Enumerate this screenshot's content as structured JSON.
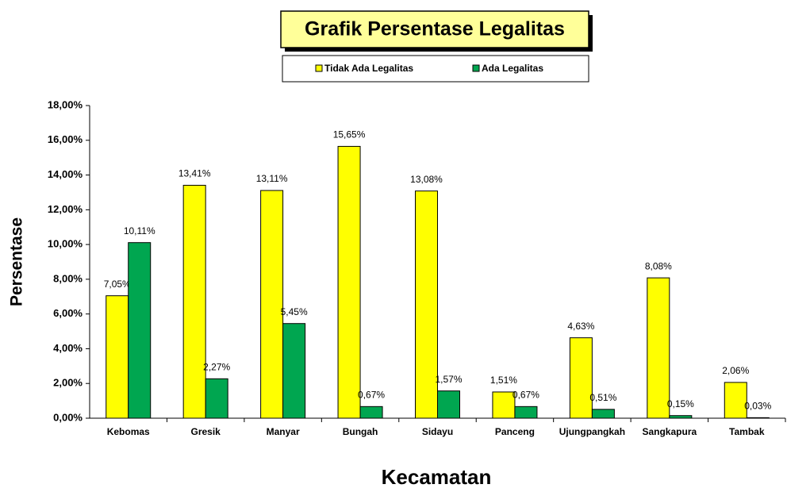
{
  "chart_data": {
    "type": "bar",
    "title": "Grafik Persentase Legalitas",
    "x_label": "Kecamatan",
    "y_label": "Persentase",
    "categories": [
      "Kebomas",
      "Gresik",
      "Manyar",
      "Bungah",
      "Sidayu",
      "Panceng",
      "Ujungpangkah",
      "Sangkapura",
      "Tambak"
    ],
    "series": [
      {
        "name": "Tidak Ada Legalitas",
        "color": "#ffff00",
        "values": [
          7.05,
          13.41,
          13.11,
          15.65,
          13.08,
          1.51,
          4.63,
          8.08,
          2.06
        ],
        "value_labels": [
          "7,05%",
          "13,41%",
          "13,11%",
          "15,65%",
          "13,08%",
          "1,51%",
          "4,63%",
          "8,08%",
          "2,06%"
        ]
      },
      {
        "name": "Ada Legalitas",
        "color": "#00a650",
        "values": [
          10.11,
          2.27,
          5.45,
          0.67,
          1.57,
          0.67,
          0.51,
          0.15,
          0.03
        ],
        "value_labels": [
          "10,11%",
          "2,27%",
          "5,45%",
          "0,67%",
          "1,57%",
          "0,67%",
          "0,51%",
          "0,15%",
          "0,03%"
        ]
      }
    ],
    "ylim": [
      0,
      18
    ],
    "yticks": [
      {
        "value": 0,
        "label": "0,00%"
      },
      {
        "value": 2,
        "label": "2,00%"
      },
      {
        "value": 4,
        "label": "4,00%"
      },
      {
        "value": 6,
        "label": "6,00%"
      },
      {
        "value": 8,
        "label": "8,00%"
      },
      {
        "value": 10,
        "label": "10,00%"
      },
      {
        "value": 12,
        "label": "12,00%"
      },
      {
        "value": 14,
        "label": "14,00%"
      },
      {
        "value": 16,
        "label": "16,00%"
      },
      {
        "value": 18,
        "label": "18,00%"
      }
    ],
    "legend": "top"
  }
}
